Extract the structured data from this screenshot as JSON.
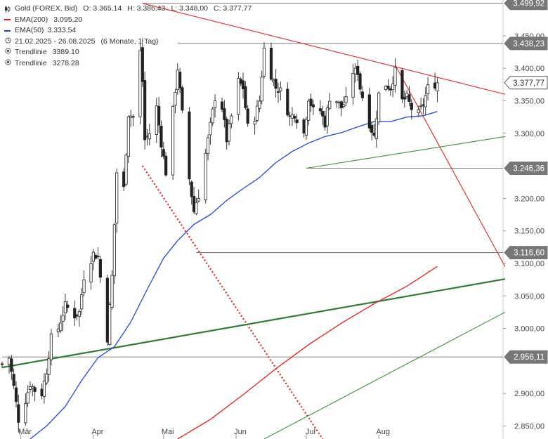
{
  "legend": {
    "instrument": "Gold (FOREX, Bid)",
    "ohlc": {
      "open": "O: 3.365,14",
      "high": "H: 3.386,43",
      "low": "L: 3.348,00",
      "close": "C: 3.377,77"
    },
    "ema200": {
      "label": "EMA(200)",
      "value": "3.095,20",
      "color": "#e31e1e"
    },
    "ema50": {
      "label": "EMA(50)",
      "value": "3.333,54",
      "color": "#1f46d6"
    },
    "range": "21.02.2025 - 26.08.2025",
    "period": "(6 Monate, 1 Tag)",
    "trendline1": {
      "label": "Trendlinie",
      "value": "3389.10"
    },
    "trendline2": {
      "label": "Trendlinie",
      "value": "3278.28"
    }
  },
  "chart_data": {
    "type": "candlestick",
    "title": "Gold (FOREX, Bid)",
    "ylim": [
      2830,
      3505
    ],
    "y_ticks": [
      {
        "value": 2850,
        "label": "2.850,00"
      },
      {
        "value": 2900,
        "label": "2.900,00"
      },
      {
        "value": 3000,
        "label": "3.000,00"
      },
      {
        "value": 3050,
        "label": "3.050,00"
      },
      {
        "value": 3100,
        "label": "3.100,00"
      },
      {
        "value": 3150,
        "label": "3.150,00"
      },
      {
        "value": 3200,
        "label": "3.200,00"
      },
      {
        "value": 3300,
        "label": "3.300,00"
      },
      {
        "value": 3350,
        "label": "3.350,00"
      },
      {
        "value": 3400,
        "label": "3.400,00"
      },
      {
        "value": 3450,
        "label": "3.450,00"
      }
    ],
    "x_ticks": [
      {
        "date": "2025-03-01",
        "label": "Mär"
      },
      {
        "date": "2025-04-01",
        "label": "Apr"
      },
      {
        "date": "2025-05-01",
        "label": "Mai"
      },
      {
        "date": "2025-06-01",
        "label": "Jun"
      },
      {
        "date": "2025-07-01",
        "label": "Jul"
      },
      {
        "date": "2025-08-01",
        "label": "Aug"
      }
    ],
    "x_range": [
      "2025-02-21",
      "2025-09-24"
    ],
    "level_lines": [
      {
        "value": 3499.92,
        "label": "3.499,92",
        "from": "2025-04-22"
      },
      {
        "value": 3438.23,
        "label": "3.438,23",
        "from": "2025-05-07"
      },
      {
        "value": 3246.36,
        "label": "3.246,36",
        "from": "2025-07-01"
      },
      {
        "value": 3116.6,
        "label": "3.116,60",
        "from": "2025-05-15"
      },
      {
        "value": 2956.11,
        "label": "2.956,11",
        "from": "2025-02-21"
      }
    ],
    "current_price": {
      "value": 3377.77,
      "label": "3.377,77",
      "color": "#333333"
    },
    "trendlines": [
      {
        "name": "resistance",
        "color": "#e02424",
        "width": 1.1,
        "dash": "none",
        "points": [
          [
            "2025-04-22",
            3499.92
          ],
          [
            "2025-09-24",
            3360
          ]
        ]
      },
      {
        "name": "down-slope",
        "color": "#e02424",
        "width": 1.1,
        "dash": "none",
        "points": [
          [
            "2025-08-08",
            3405
          ],
          [
            "2025-09-24",
            3095
          ]
        ]
      },
      {
        "name": "support-dotted",
        "color": "#e02424",
        "width": 2.2,
        "dash": "2,3",
        "points": [
          [
            "2025-04-22",
            3250
          ],
          [
            "2025-07-08",
            2830
          ]
        ]
      },
      {
        "name": "long-support",
        "color": "#2e7d32",
        "width": 2.2,
        "dash": "none",
        "points": [
          [
            "2025-02-21",
            2940
          ],
          [
            "2025-09-24",
            3076
          ]
        ]
      },
      {
        "name": "green-thin-1",
        "color": "#3c8f3c",
        "width": 1.1,
        "dash": "none",
        "points": [
          [
            "2025-07-01",
            3246.36
          ],
          [
            "2025-09-24",
            3295
          ]
        ]
      },
      {
        "name": "green-thin-2",
        "color": "#3c8f3c",
        "width": 1.1,
        "dash": "none",
        "points": [
          [
            "2025-06-13",
            2830
          ],
          [
            "2025-09-24",
            3025
          ]
        ]
      }
    ],
    "series": [
      {
        "name": "EMA(200)",
        "color": "#e31e1e",
        "points": [
          [
            "2025-05-07",
            2830
          ],
          [
            "2025-05-21",
            2860
          ],
          [
            "2025-06-04",
            2898
          ],
          [
            "2025-06-18",
            2938
          ],
          [
            "2025-07-02",
            2975
          ],
          [
            "2025-07-16",
            3008
          ],
          [
            "2025-07-30",
            3038
          ],
          [
            "2025-08-13",
            3065
          ],
          [
            "2025-08-26",
            3095.2
          ]
        ]
      },
      {
        "name": "EMA(50)",
        "color": "#1f46d6",
        "points": [
          [
            "2025-03-05",
            2830
          ],
          [
            "2025-03-12",
            2850
          ],
          [
            "2025-03-20",
            2880
          ],
          [
            "2025-03-27",
            2920
          ],
          [
            "2025-04-03",
            2955
          ],
          [
            "2025-04-10",
            2972
          ],
          [
            "2025-04-17",
            3010
          ],
          [
            "2025-04-24",
            3060
          ],
          [
            "2025-05-01",
            3108
          ],
          [
            "2025-05-07",
            3135
          ],
          [
            "2025-05-14",
            3160
          ],
          [
            "2025-05-21",
            3175
          ],
          [
            "2025-05-28",
            3197
          ],
          [
            "2025-06-04",
            3215
          ],
          [
            "2025-06-11",
            3232
          ],
          [
            "2025-06-18",
            3255
          ],
          [
            "2025-06-25",
            3272
          ],
          [
            "2025-07-02",
            3285
          ],
          [
            "2025-07-09",
            3295
          ],
          [
            "2025-07-16",
            3301
          ],
          [
            "2025-07-23",
            3310
          ],
          [
            "2025-07-30",
            3318
          ],
          [
            "2025-08-06",
            3318
          ],
          [
            "2025-08-13",
            3325
          ],
          [
            "2025-08-20",
            3327
          ],
          [
            "2025-08-26",
            3333.54
          ]
        ]
      }
    ],
    "candle_anchors": [
      [
        "2025-02-21",
        2945
      ],
      [
        "2025-02-24",
        2955
      ],
      [
        "2025-02-26",
        2910
      ],
      [
        "2025-02-28",
        2860
      ],
      [
        "2025-03-03",
        2890
      ],
      [
        "2025-03-05",
        2915
      ],
      [
        "2025-03-07",
        2905
      ],
      [
        "2025-03-10",
        2900
      ],
      [
        "2025-03-12",
        2935
      ],
      [
        "2025-03-14",
        2985
      ],
      [
        "2025-03-17",
        3000
      ],
      [
        "2025-03-20",
        3035
      ],
      [
        "2025-03-24",
        3020
      ],
      [
        "2025-03-26",
        3025
      ],
      [
        "2025-03-28",
        3080
      ],
      [
        "2025-04-01",
        3115
      ],
      [
        "2025-04-03",
        3110
      ],
      [
        "2025-04-07",
        2985
      ],
      [
        "2025-04-09",
        3080
      ],
      [
        "2025-04-11",
        3240
      ],
      [
        "2025-04-14",
        3215
      ],
      [
        "2025-04-16",
        3330
      ],
      [
        "2025-04-18",
        3325
      ],
      [
        "2025-04-21",
        3425
      ],
      [
        "2025-04-22",
        3380
      ],
      [
        "2025-04-23",
        3290
      ],
      [
        "2025-04-25",
        3300
      ],
      [
        "2025-04-28",
        3340
      ],
      [
        "2025-04-30",
        3285
      ],
      [
        "2025-05-02",
        3240
      ],
      [
        "2025-05-05",
        3335
      ],
      [
        "2025-05-07",
        3400
      ],
      [
        "2025-05-09",
        3330
      ],
      [
        "2025-05-12",
        3230
      ],
      [
        "2025-05-14",
        3180
      ],
      [
        "2025-05-15",
        3195
      ],
      [
        "2025-05-16",
        3205
      ],
      [
        "2025-05-20",
        3290
      ],
      [
        "2025-05-23",
        3355
      ],
      [
        "2025-05-26",
        3340
      ],
      [
        "2025-05-28",
        3290
      ],
      [
        "2025-06-02",
        3380
      ],
      [
        "2025-06-04",
        3370
      ],
      [
        "2025-06-06",
        3310
      ],
      [
        "2025-06-09",
        3325
      ],
      [
        "2025-06-11",
        3350
      ],
      [
        "2025-06-13",
        3430
      ],
      [
        "2025-06-16",
        3390
      ],
      [
        "2025-06-18",
        3370
      ],
      [
        "2025-06-20",
        3365
      ],
      [
        "2025-06-24",
        3325
      ],
      [
        "2025-06-26",
        3330
      ],
      [
        "2025-06-30",
        3300
      ],
      [
        "2025-07-02",
        3355
      ],
      [
        "2025-07-04",
        3335
      ],
      [
        "2025-07-07",
        3335
      ],
      [
        "2025-07-09",
        3315
      ],
      [
        "2025-07-11",
        3355
      ],
      [
        "2025-07-14",
        3350
      ],
      [
        "2025-07-16",
        3340
      ],
      [
        "2025-07-18",
        3350
      ],
      [
        "2025-07-21",
        3395
      ],
      [
        "2025-07-23",
        3395
      ],
      [
        "2025-07-24",
        3370
      ],
      [
        "2025-07-28",
        3315
      ],
      [
        "2025-07-30",
        3295
      ],
      [
        "2025-08-01",
        3360
      ],
      [
        "2025-08-04",
        3375
      ],
      [
        "2025-08-06",
        3370
      ],
      [
        "2025-08-08",
        3395
      ],
      [
        "2025-08-11",
        3350
      ],
      [
        "2025-08-13",
        3355
      ],
      [
        "2025-08-15",
        3338
      ],
      [
        "2025-08-18",
        3330
      ],
      [
        "2025-08-20",
        3345
      ],
      [
        "2025-08-22",
        3370
      ],
      [
        "2025-08-26",
        3377.77
      ]
    ]
  }
}
